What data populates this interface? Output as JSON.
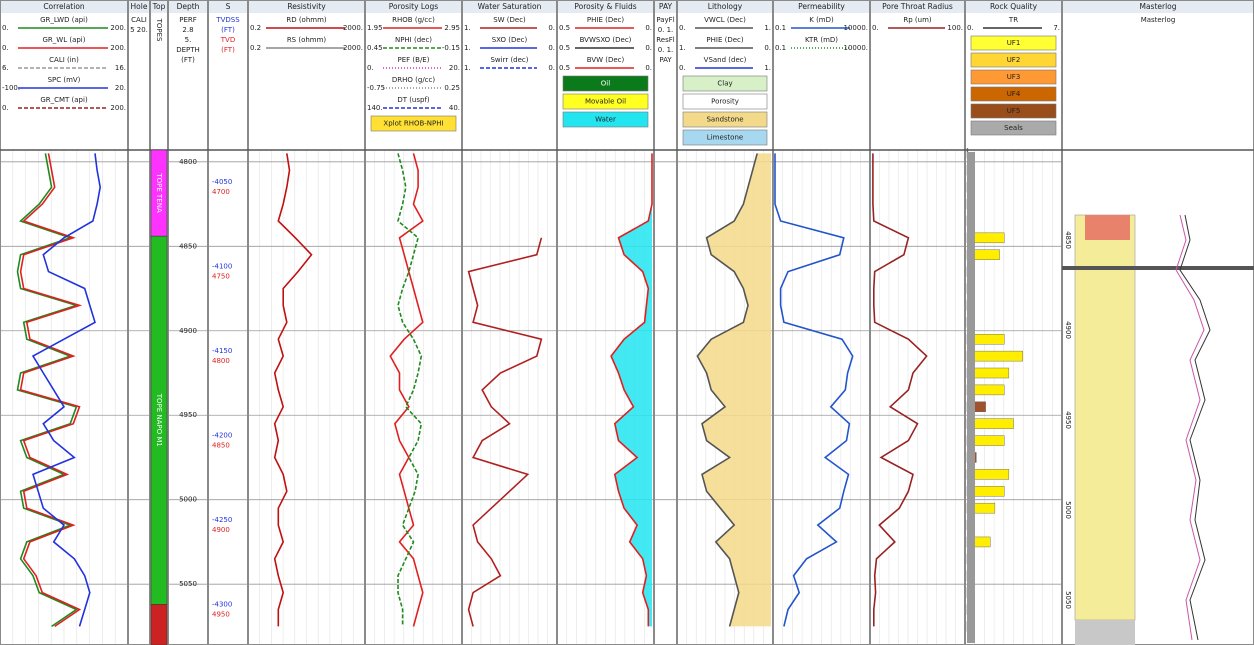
{
  "chart_data": {
    "type": "well-log",
    "depth": [
      4795,
      4805,
      4815,
      4825,
      4835,
      4845,
      4855,
      4865,
      4875,
      4885,
      4895,
      4905,
      4915,
      4925,
      4935,
      4945,
      4955,
      4965,
      4975,
      4985,
      4995,
      5005,
      5015,
      5025,
      5035,
      5045,
      5055,
      5065,
      5075
    ],
    "ylim": [
      4793,
      5086
    ],
    "yticks": [
      4800,
      4850,
      4900,
      4950,
      5000,
      5050
    ],
    "y2lim": [
      -4028,
      -4321
    ],
    "y2ticks": [
      -4050,
      -4100,
      -4150,
      -4200,
      -4250,
      -4300
    ],
    "y3lim": [
      4678,
      4971
    ],
    "y3ticks": [
      4700,
      4750,
      4800,
      4850,
      4900,
      4950
    ],
    "grid": true,
    "tops": [
      {
        "name": "TOPE TENA",
        "top": 4793,
        "base": 4844,
        "color": "#ff33ff"
      },
      {
        "name": "TOPE NAPO M1",
        "top": 4844,
        "base": 5062,
        "color": "#22bb22"
      },
      {
        "top": 5062,
        "base": 5086,
        "color": "#cc2222"
      }
    ],
    "masterlog_ylim": [
      4800,
      5075
    ],
    "masterlog_ticks": [
      4850,
      4900,
      4950,
      5000,
      5050
    ],
    "tracks": [
      {
        "title": "Correlation",
        "curves": [
          {
            "label": "GR_LWD (api)",
            "left": {
              "value": 0,
              "label": "0."
            },
            "right": {
              "value": 200,
              "label": "200."
            },
            "color": "#1f8a1f",
            "dash": "",
            "values": [
              70,
              75,
              80,
              60,
              30,
              110,
              30,
              25,
              30,
              120,
              35,
              40,
              110,
              30,
              25,
              120,
              110,
              30,
              40,
              100,
              30,
              35,
              110,
              40,
              30,
              50,
              60,
              120,
              80
            ]
          },
          {
            "label": "GR_WL (api)",
            "left": {
              "value": 0,
              "label": "0."
            },
            "right": {
              "value": 200,
              "label": "200."
            },
            "color": "#e02020",
            "dash": "",
            "values": [
              75,
              80,
              85,
              65,
              35,
              115,
              35,
              30,
              35,
              125,
              40,
              45,
              115,
              35,
              30,
              125,
              115,
              35,
              45,
              105,
              35,
              40,
              115,
              45,
              35,
              55,
              65,
              125,
              85
            ]
          },
          {
            "label": "CALI (in)",
            "left": {
              "value": 6,
              "label": "6."
            },
            "right": {
              "value": 16,
              "label": "16."
            },
            "color": "#999999",
            "dash": "4 2"
          },
          {
            "label": "SPC (mV)",
            "left": {
              "value": -100,
              "label": "-100."
            },
            "right": {
              "value": 20,
              "label": "20."
            },
            "color": "#2233dd",
            "dash": "",
            "values": [
              -10,
              -8,
              -5,
              -8,
              -12,
              -40,
              -60,
              -55,
              -20,
              -15,
              -10,
              -40,
              -70,
              -60,
              -50,
              -40,
              -60,
              -50,
              -30,
              -70,
              -65,
              -60,
              -40,
              -50,
              -30,
              -20,
              -15,
              -20,
              -25
            ]
          },
          {
            "label": "GR_CMT (api)",
            "left": {
              "value": 0,
              "label": "0."
            },
            "right": {
              "value": 200,
              "label": "200."
            },
            "color": "#992222",
            "dash": "4 2"
          }
        ]
      },
      {
        "title": "Hole",
        "lines": [
          "CALI",
          "5 20."
        ]
      },
      {
        "title": "Top",
        "lines": [
          "TOPES"
        ]
      },
      {
        "title": "Depth",
        "lines": [
          "PERF",
          "2.8",
          "5.",
          "DEPTH",
          "(FT)"
        ]
      },
      {
        "title": "S",
        "lines": [
          "TVDSS",
          "(FT)",
          "TVD",
          "(FT)"
        ],
        "line_colors": [
          "#2233dd",
          "#2233dd",
          "#e02020",
          "#e02020"
        ]
      },
      {
        "title": "Resistivity",
        "curves": [
          {
            "label": "RD (ohmm)",
            "left": {
              "value": 0.2,
              "label": "0.2"
            },
            "right": {
              "value": 2000,
              "label": "2000."
            },
            "log": true,
            "color": "#c01010",
            "dash": "",
            "values": [
              4,
              5,
              4,
              3,
              2,
              8,
              30,
              10,
              3,
              3,
              4,
              2,
              3,
              1.5,
              2,
              3,
              1.5,
              2,
              1.5,
              3,
              4,
              2,
              2,
              3,
              1.5,
              2,
              3,
              2,
              2
            ]
          },
          {
            "label": "RS (ohmm)",
            "left": {
              "value": 0.2,
              "label": "0.2"
            },
            "right": {
              "value": 2000,
              "label": "2000."
            },
            "log": true,
            "color": "#888888",
            "dash": ""
          }
        ]
      },
      {
        "title": "Porosity Logs",
        "curves": [
          {
            "label": "RHOB (g/cc)",
            "left": {
              "value": 1.95,
              "label": "1.95"
            },
            "right": {
              "value": 2.95,
              "label": "2.95"
            },
            "color": "#e02020",
            "dash": "",
            "values": [
              2.45,
              2.5,
              2.5,
              2.45,
              2.55,
              2.3,
              2.35,
              2.4,
              2.45,
              2.5,
              2.55,
              2.35,
              2.2,
              2.3,
              2.3,
              2.4,
              2.25,
              2.3,
              2.4,
              2.3,
              2.35,
              2.4,
              2.45,
              2.3,
              2.45,
              2.5,
              2.55,
              2.5,
              2.45
            ]
          },
          {
            "label": "NPHI (dec)",
            "left": {
              "value": 0.45,
              "label": "0.45"
            },
            "right": {
              "value": -0.15,
              "label": "-0.15"
            },
            "color": "#1f8a1f",
            "dash": "4 2",
            "values": [
              0.25,
              0.22,
              0.2,
              0.22,
              0.25,
              0.12,
              0.15,
              0.18,
              0.22,
              0.25,
              0.22,
              0.15,
              0.1,
              0.12,
              0.15,
              0.2,
              0.1,
              0.12,
              0.18,
              0.12,
              0.14,
              0.18,
              0.22,
              0.15,
              0.2,
              0.25,
              0.25,
              0.22,
              0.22
            ]
          },
          {
            "label": "PEF (B/E)",
            "left": {
              "value": 0,
              "label": "0."
            },
            "right": {
              "value": 20,
              "label": "20."
            },
            "color": "#cc33cc",
            "dash": "1 2"
          },
          {
            "label": "DRHO (g/cc)",
            "left": {
              "value": -0.75,
              "label": "-0.75"
            },
            "right": {
              "value": 0.25,
              "label": "0.25"
            },
            "color": "#888888",
            "dash": "1 2"
          },
          {
            "label": "DT (uspf)",
            "left": {
              "value": 140,
              "label": "140."
            },
            "right": {
              "value": 40,
              "label": "40."
            },
            "color": "#2233dd",
            "dash": "4 2"
          }
        ],
        "boxes": [
          {
            "text": "Xplot RHOB-NPHI",
            "color": "#ffe033"
          }
        ]
      },
      {
        "title": "Water Saturation",
        "curves": [
          {
            "label": "SW (Dec)",
            "left": {
              "value": 1,
              "label": "1."
            },
            "right": {
              "value": 0,
              "label": "0."
            },
            "color": "#b02020",
            "dash": "",
            "values": [
              null,
              null,
              null,
              null,
              null,
              0.15,
              0.2,
              0.95,
              0.9,
              0.85,
              0.9,
              0.15,
              0.2,
              0.6,
              0.8,
              0.7,
              0.5,
              0.8,
              0.9,
              0.3,
              0.5,
              0.7,
              0.9,
              0.85,
              0.7,
              0.6,
              0.9,
              0.95,
              0.9
            ]
          },
          {
            "label": "SXO (Dec)",
            "left": {
              "value": 1,
              "label": "1."
            },
            "right": {
              "value": 0,
              "label": "0."
            },
            "color": "#2233dd",
            "dash": ""
          },
          {
            "label": "Swirr (dec)",
            "left": {
              "value": 1,
              "label": "1."
            },
            "right": {
              "value": 0,
              "label": "0."
            },
            "color": "#2233dd",
            "dash": "4 2"
          }
        ]
      },
      {
        "title": "Porosity & Fluids",
        "curves": [
          {
            "label": "PHIE (Dec)",
            "left": {
              "value": 0.5,
              "label": "0.5"
            },
            "right": {
              "value": 0,
              "label": "0."
            },
            "color": "#e02020",
            "dash": "",
            "fill": "#22e5f0",
            "values": [
              0,
              0,
              0,
              0,
              0.02,
              0.18,
              0.15,
              0.05,
              0.02,
              0.03,
              0.04,
              0.15,
              0.22,
              0.18,
              0.15,
              0.1,
              0.2,
              0.18,
              0.08,
              0.2,
              0.18,
              0.15,
              0.08,
              0.12,
              0.05,
              0.03,
              0.05,
              0.02,
              0.02
            ]
          },
          {
            "label": "BVWSXO (Dec)",
            "left": {
              "value": 0.5,
              "label": "0.5"
            },
            "right": {
              "value": 0,
              "label": "0."
            },
            "color": "#333333",
            "dash": ""
          },
          {
            "label": "BVW (Dec)",
            "left": {
              "value": 0.5,
              "label": "0.5"
            },
            "right": {
              "value": 0,
              "label": "0."
            },
            "color": "#e02020",
            "dash": ""
          }
        ],
        "boxes": [
          {
            "text": "Oil",
            "color": "#0a7a1a",
            "text_color": "#ffffff"
          },
          {
            "text": "Movable Oil",
            "color": "#ffff22"
          },
          {
            "text": "Water",
            "color": "#22e5f0"
          }
        ]
      },
      {
        "title": "PAY",
        "lines": [
          "PayFl",
          "0. 1.",
          "ResFl",
          "0. 1.",
          "PAY"
        ]
      },
      {
        "title": "Lithology",
        "curves": [
          {
            "label": "VWCL (Dec)",
            "left": {
              "value": 0,
              "label": "0."
            },
            "right": {
              "value": 1,
              "label": "1."
            },
            "color": "#555555",
            "dash": "",
            "fill": "#f3d98a",
            "values": [
              0.85,
              0.8,
              0.75,
              0.7,
              0.6,
              0.3,
              0.35,
              0.6,
              0.7,
              0.75,
              0.7,
              0.35,
              0.2,
              0.3,
              0.35,
              0.5,
              0.25,
              0.3,
              0.55,
              0.25,
              0.3,
              0.45,
              0.6,
              0.4,
              0.55,
              0.6,
              0.65,
              0.6,
              0.55
            ]
          },
          {
            "label": "PHIE (Dec)",
            "left": {
              "value": 1,
              "label": "1."
            },
            "right": {
              "value": 0,
              "label": "0."
            },
            "color": "#555555",
            "dash": ""
          },
          {
            "label": "VSand (dec)",
            "left": {
              "value": 0,
              "label": "0."
            },
            "right": {
              "value": 1,
              "label": "1."
            },
            "color": "#2233dd",
            "dash": ""
          }
        ],
        "boxes": [
          {
            "text": "Clay",
            "color": "#d8f0c8"
          },
          {
            "text": "Porosity",
            "color": "#ffffff"
          },
          {
            "text": "Sandstone",
            "color": "#f3d98a"
          },
          {
            "text": "Limestone",
            "color": "#a8d8f0"
          }
        ]
      },
      {
        "title": "Permeability",
        "curves": [
          {
            "label": "K (mD)",
            "left": {
              "value": 0.1,
              "label": "0.1"
            },
            "right": {
              "value": 10000,
              "label": "10000."
            },
            "log": true,
            "color": "#2255cc",
            "dash": "",
            "values": [
              0.1,
              0.1,
              0.1,
              0.1,
              0.2,
              500,
              300,
              0.5,
              0.2,
              0.2,
              0.3,
              400,
              1500,
              800,
              600,
              100,
              1000,
              700,
              50,
              900,
              500,
              300,
              20,
              200,
              5,
              1,
              2,
              0.5,
              0.3
            ]
          },
          {
            "label": "KTR (mD)",
            "left": {
              "value": 0.1,
              "label": "0.1"
            },
            "right": {
              "value": 10000,
              "label": "10000."
            },
            "log": true,
            "color": "#1f8a1f",
            "dash": "1 2"
          }
        ]
      },
      {
        "title": "Pore Throat Radius",
        "curves": [
          {
            "label": "Rp (um)",
            "left": {
              "value": 0,
              "label": "0."
            },
            "right": {
              "value": 100,
              "label": "100."
            },
            "color": "#992222",
            "dash": "",
            "values": [
              1,
              1,
              1,
              1,
              2,
              40,
              35,
              3,
              2,
              2,
              3,
              40,
              60,
              45,
              40,
              20,
              50,
              40,
              10,
              45,
              40,
              30,
              8,
              25,
              5,
              3,
              4,
              2,
              2
            ]
          }
        ]
      },
      {
        "title": "Rock Quality",
        "curves": [
          {
            "label": "TR",
            "left": {
              "value": 0,
              "label": "0."
            },
            "right": {
              "value": 7,
              "label": "7."
            },
            "color": "#333333",
            "dash": ""
          }
        ],
        "boxes": [
          {
            "text": "UF1",
            "color": "#ffff33"
          },
          {
            "text": "UF2",
            "color": "#ffd633"
          },
          {
            "text": "UF3",
            "color": "#ff9933"
          },
          {
            "text": "UF4",
            "color": "#cc6600"
          },
          {
            "text": "UF5",
            "color": "#994d1a"
          },
          {
            "text": "Seals",
            "color": "#aaaaaa"
          }
        ]
      },
      {
        "title": "Masterlog",
        "lines": [
          "Masterlog"
        ]
      }
    ]
  }
}
